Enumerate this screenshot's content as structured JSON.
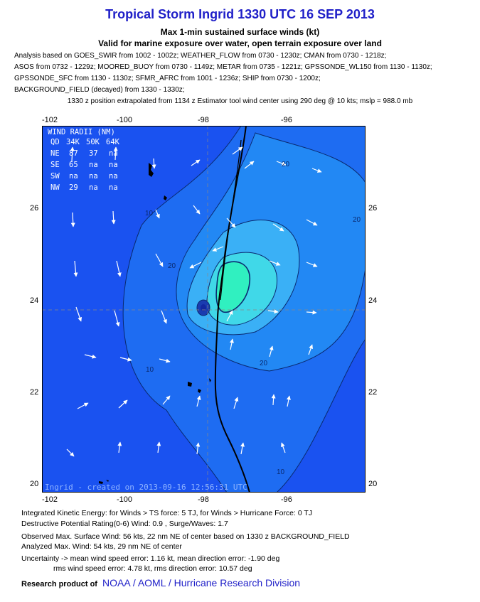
{
  "header": {
    "title": "Tropical Storm Ingrid 1330 UTC 16 SEP 2013",
    "subtitle1": "Max 1-min sustained surface winds (kt)",
    "subtitle2": "Valid for marine exposure over water, open terrain exposure over land"
  },
  "analysis_lines": [
    "Analysis based on GOES_SWIR from 1002 - 1002z; WEATHER_FLOW from 0730 - 1230z; CMAN from 0730 - 1218z;",
    "ASOS from 0732 - 1229z; MOORED_BUOY from 0730 - 1149z; METAR from 0735 - 1221z; GPSSONDE_WL150 from 1130 - 1130z;",
    "GPSSONDE_SFC from 1130 - 1130z; SFMR_AFRC from 1001 - 1236z; SHIP from 0730 - 1200z;",
    "BACKGROUND_FIELD (decayed) from 1330 - 1330z;"
  ],
  "extrapolation_note": "1330 z position extrapolated from 1134 z Estimator tool wind center using 290 deg @ 10 kts; mslp = 988.0 mb",
  "map": {
    "lon_ticks": [
      "-102",
      "-100",
      "-98",
      "-96"
    ],
    "lat_ticks": [
      "26",
      "24",
      "22",
      "20"
    ],
    "contour_labels": [
      "10",
      "10",
      "20",
      "20",
      "20",
      "10",
      "20"
    ],
    "wind_radii": {
      "title": "WIND RADII (NM)",
      "header": [
        "QD",
        "34K",
        "50K",
        "64K"
      ],
      "rows": [
        [
          "NE",
          "87",
          "37",
          "na"
        ],
        [
          "SE",
          "65",
          "na",
          "na"
        ],
        [
          "SW",
          "na",
          "na",
          "na"
        ],
        [
          "NW",
          "29",
          "na",
          "na"
        ]
      ]
    },
    "created_stamp": "Ingrid - created on 2013-09-16 12:56:31 UTC",
    "colors": {
      "background": "#1a52f0",
      "land_coast": "#000000",
      "level_20": "#2288f4",
      "level_30": "#3ab0f6",
      "level_40": "#40d8e8",
      "level_50": "#30f0c0"
    }
  },
  "footer": {
    "ike": "Integrated Kinetic Energy: for Winds > TS force: 5 TJ, for Winds > Hurricane Force: 0 TJ",
    "destructive": "Destructive Potential Rating(0-6)  Wind: 0.9 , Surge/Waves: 1.7",
    "observed": "Observed Max. Surface Wind: 56 kts, 22 nm NE of center based on 1330 z BACKGROUND_FIELD",
    "analyzed": "Analyzed Max. Wind: 54 kts, 29 nm  NE of center",
    "uncertainty": "Uncertainty -> mean wind speed error: 1.16 kt, mean direction error:  -1.90 deg",
    "rms": "rms wind speed error: 4.78 kt, rms direction error: 10.57 deg",
    "research_label": "Research product of",
    "research_org": "NOAA / AOML / Hurricane Research Division"
  }
}
